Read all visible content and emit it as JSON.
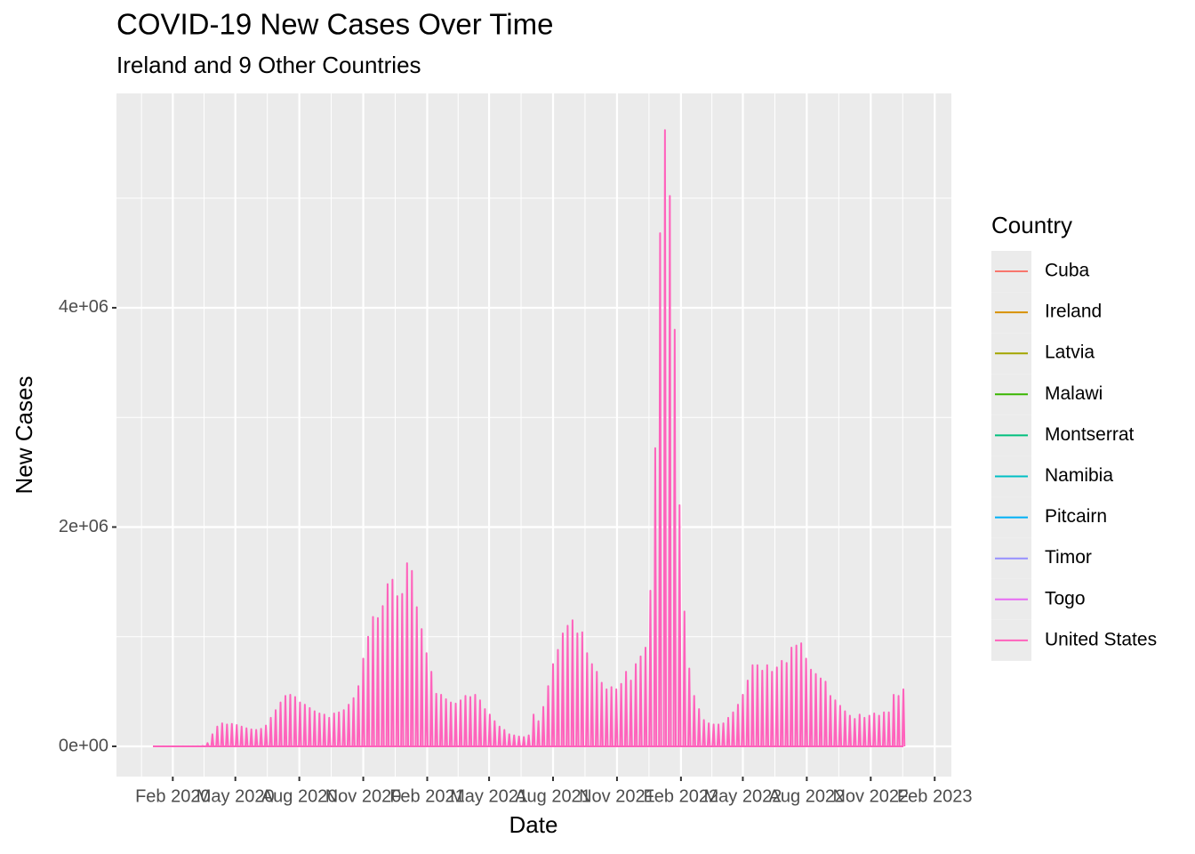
{
  "chart_data": {
    "type": "line",
    "title": "COVID-19 New Cases Over Time",
    "subtitle": "Ireland and 9 Other Countries",
    "x_label": "Date",
    "y_label": "New Cases",
    "legend_title": "Country",
    "legend": [
      {
        "name": "Cuba",
        "color": "#F8766D"
      },
      {
        "name": "Ireland",
        "color": "#D89000"
      },
      {
        "name": "Latvia",
        "color": "#A3A500"
      },
      {
        "name": "Malawi",
        "color": "#39B600"
      },
      {
        "name": "Montserrat",
        "color": "#00BF7D"
      },
      {
        "name": "Namibia",
        "color": "#00BFC4"
      },
      {
        "name": "Pitcairn",
        "color": "#00B0F6"
      },
      {
        "name": "Timor",
        "color": "#9590FF"
      },
      {
        "name": "Togo",
        "color": "#E76BF3"
      },
      {
        "name": "United States",
        "color": "#FF62BC"
      }
    ],
    "legend_position": "right",
    "grid": true,
    "xlim": [
      "2019-11-12",
      "2023-02-25"
    ],
    "xticks": [
      {
        "value": "2020-02-01",
        "label": "Feb 2020"
      },
      {
        "value": "2020-05-01",
        "label": "May 2020"
      },
      {
        "value": "2020-08-01",
        "label": "Aug 2020"
      },
      {
        "value": "2020-11-01",
        "label": "Nov 2020"
      },
      {
        "value": "2021-02-01",
        "label": "Feb 2021"
      },
      {
        "value": "2021-05-01",
        "label": "May 2021"
      },
      {
        "value": "2021-08-01",
        "label": "Aug 2021"
      },
      {
        "value": "2021-11-01",
        "label": "Nov 2021"
      },
      {
        "value": "2022-02-01",
        "label": "Feb 2022"
      },
      {
        "value": "2022-05-01",
        "label": "May 2022"
      },
      {
        "value": "2022-08-01",
        "label": "Aug 2022"
      },
      {
        "value": "2022-11-01",
        "label": "Nov 2022"
      },
      {
        "value": "2023-02-01",
        "label": "Feb 2023"
      }
    ],
    "ylim": [
      -276000,
      5955000
    ],
    "yticks": [
      {
        "value": 0,
        "label": "0e+00"
      },
      {
        "value": 2000000,
        "label": "2e+06"
      },
      {
        "value": 4000000,
        "label": "4e+06"
      }
    ],
    "series": [
      {
        "name": "United States",
        "color": "#FF62BC",
        "x": [
          "2020-01-05",
          "2020-01-12",
          "2020-01-19",
          "2020-01-26",
          "2020-02-02",
          "2020-02-09",
          "2020-02-16",
          "2020-02-23",
          "2020-03-01",
          "2020-03-08",
          "2020-03-15",
          "2020-03-22",
          "2020-03-29",
          "2020-04-05",
          "2020-04-12",
          "2020-04-19",
          "2020-04-26",
          "2020-05-03",
          "2020-05-10",
          "2020-05-17",
          "2020-05-24",
          "2020-05-31",
          "2020-06-07",
          "2020-06-14",
          "2020-06-21",
          "2020-06-28",
          "2020-07-05",
          "2020-07-12",
          "2020-07-19",
          "2020-07-26",
          "2020-08-02",
          "2020-08-09",
          "2020-08-16",
          "2020-08-23",
          "2020-08-30",
          "2020-09-06",
          "2020-09-13",
          "2020-09-20",
          "2020-09-27",
          "2020-10-04",
          "2020-10-11",
          "2020-10-18",
          "2020-10-25",
          "2020-11-01",
          "2020-11-08",
          "2020-11-15",
          "2020-11-22",
          "2020-11-29",
          "2020-12-06",
          "2020-12-13",
          "2020-12-20",
          "2020-12-27",
          "2021-01-03",
          "2021-01-10",
          "2021-01-17",
          "2021-01-24",
          "2021-01-31",
          "2021-02-07",
          "2021-02-14",
          "2021-02-21",
          "2021-02-28",
          "2021-03-07",
          "2021-03-14",
          "2021-03-21",
          "2021-03-28",
          "2021-04-04",
          "2021-04-11",
          "2021-04-18",
          "2021-04-25",
          "2021-05-02",
          "2021-05-09",
          "2021-05-16",
          "2021-05-23",
          "2021-05-30",
          "2021-06-06",
          "2021-06-13",
          "2021-06-20",
          "2021-06-27",
          "2021-07-04",
          "2021-07-11",
          "2021-07-18",
          "2021-07-25",
          "2021-08-01",
          "2021-08-08",
          "2021-08-15",
          "2021-08-22",
          "2021-08-29",
          "2021-09-05",
          "2021-09-12",
          "2021-09-19",
          "2021-09-26",
          "2021-10-03",
          "2021-10-10",
          "2021-10-17",
          "2021-10-24",
          "2021-10-31",
          "2021-11-07",
          "2021-11-14",
          "2021-11-21",
          "2021-11-28",
          "2021-12-05",
          "2021-12-12",
          "2021-12-19",
          "2021-12-26",
          "2022-01-02",
          "2022-01-09",
          "2022-01-16",
          "2022-01-23",
          "2022-01-30",
          "2022-02-06",
          "2022-02-13",
          "2022-02-20",
          "2022-02-27",
          "2022-03-06",
          "2022-03-13",
          "2022-03-20",
          "2022-03-27",
          "2022-04-03",
          "2022-04-10",
          "2022-04-17",
          "2022-04-24",
          "2022-05-01",
          "2022-05-08",
          "2022-05-15",
          "2022-05-22",
          "2022-05-29",
          "2022-06-05",
          "2022-06-12",
          "2022-06-19",
          "2022-06-26",
          "2022-07-03",
          "2022-07-10",
          "2022-07-17",
          "2022-07-24",
          "2022-07-31",
          "2022-08-07",
          "2022-08-14",
          "2022-08-21",
          "2022-08-28",
          "2022-09-04",
          "2022-09-11",
          "2022-09-18",
          "2022-09-25",
          "2022-10-02",
          "2022-10-09",
          "2022-10-16",
          "2022-10-23",
          "2022-10-30",
          "2022-11-06",
          "2022-11-13",
          "2022-11-20",
          "2022-11-27",
          "2022-12-04",
          "2022-12-11",
          "2022-12-18"
        ],
        "values": [
          0,
          0,
          0,
          0,
          0,
          0,
          0,
          0,
          0,
          500,
          3000,
          30000,
          110000,
          180000,
          210000,
          200000,
          205000,
          195000,
          180000,
          165000,
          155000,
          150000,
          160000,
          190000,
          260000,
          330000,
          400000,
          460000,
          470000,
          450000,
          400000,
          380000,
          350000,
          320000,
          300000,
          290000,
          260000,
          300000,
          310000,
          330000,
          380000,
          440000,
          550000,
          800000,
          1000000,
          1180000,
          1170000,
          1280000,
          1480000,
          1520000,
          1370000,
          1390000,
          1670000,
          1600000,
          1270000,
          1070000,
          850000,
          680000,
          480000,
          470000,
          430000,
          400000,
          390000,
          420000,
          460000,
          450000,
          470000,
          420000,
          340000,
          290000,
          230000,
          180000,
          150000,
          110000,
          100000,
          90000,
          85000,
          100000,
          290000,
          230000,
          360000,
          550000,
          750000,
          880000,
          1030000,
          1100000,
          1150000,
          1030000,
          1040000,
          850000,
          750000,
          680000,
          580000,
          520000,
          540000,
          520000,
          570000,
          680000,
          600000,
          750000,
          820000,
          900000,
          1420000,
          2720000,
          4680000,
          5620000,
          5020000,
          3800000,
          2200000,
          1230000,
          710000,
          460000,
          340000,
          240000,
          210000,
          200000,
          200000,
          210000,
          260000,
          310000,
          380000,
          470000,
          600000,
          740000,
          740000,
          690000,
          740000,
          680000,
          720000,
          780000,
          760000,
          900000,
          920000,
          940000,
          800000,
          700000,
          660000,
          620000,
          590000,
          460000,
          420000,
          370000,
          320000,
          280000,
          250000,
          290000,
          260000,
          280000,
          300000,
          280000,
          310000,
          310000,
          470000,
          460000,
          520000
        ]
      }
    ]
  }
}
